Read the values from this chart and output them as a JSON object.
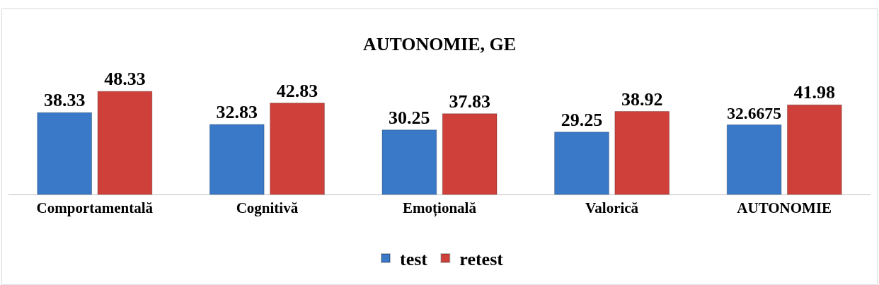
{
  "chart_data": {
    "type": "bar",
    "title": "AUTONOMIE, GE",
    "categories": [
      "Comportamentală",
      "Cognitivă",
      "Emoțională",
      "Valorică",
      "AUTONOMIE"
    ],
    "series": [
      {
        "name": "test",
        "color": "#3a78c8",
        "values": [
          38.33,
          32.83,
          30.25,
          29.25,
          32.6675
        ]
      },
      {
        "name": "retest",
        "color": "#d0403a",
        "values": [
          48.33,
          42.83,
          37.83,
          38.92,
          41.98
        ]
      }
    ],
    "data_labels": true,
    "legend": "bottom"
  }
}
